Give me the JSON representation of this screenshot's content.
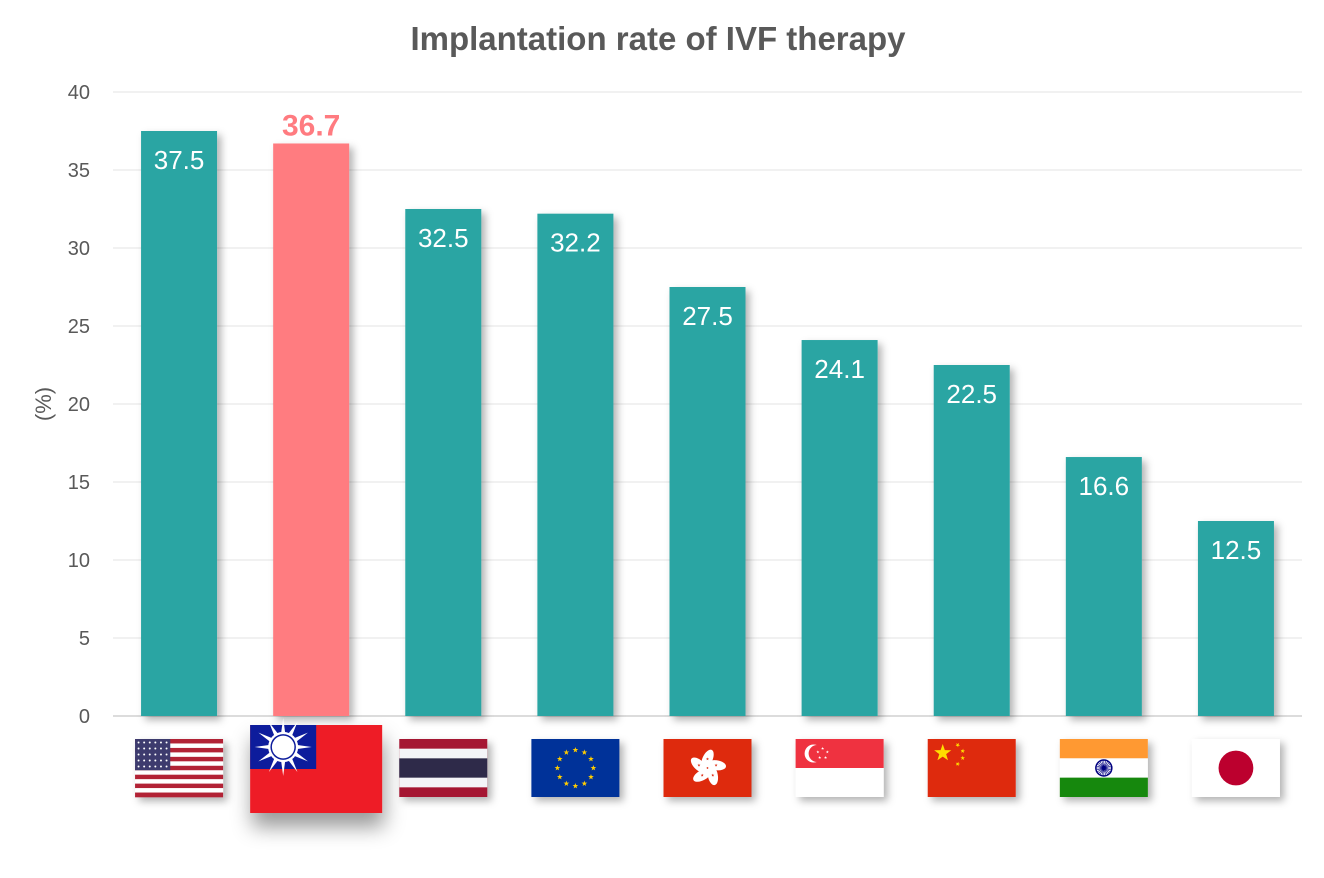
{
  "chart_data": {
    "type": "bar",
    "title": "Implantation rate of IVF therapy",
    "xlabel": "",
    "ylabel": "(%)",
    "ylim": [
      0,
      40
    ],
    "yticks": [
      0,
      5,
      10,
      15,
      20,
      25,
      30,
      35,
      40
    ],
    "grid": true,
    "categories": [
      "United States",
      "Taiwan",
      "Thailand",
      "European Union",
      "Hong Kong",
      "Singapore",
      "China",
      "India",
      "Japan"
    ],
    "values": [
      37.5,
      36.7,
      32.5,
      32.2,
      27.5,
      24.1,
      22.5,
      16.6,
      12.5
    ],
    "value_labels": [
      "37.5",
      "36.7",
      "32.5",
      "32.2",
      "27.5",
      "24.1",
      "22.5",
      "16.6",
      "12.5"
    ],
    "highlight_index": 1,
    "colors": {
      "bar": "#2aa5a3",
      "highlight": "#ff7b80",
      "grid": "#e3e3e3",
      "text": "#595959"
    },
    "flag_icons": [
      "usa-flag-icon",
      "taiwan-flag-icon",
      "thailand-flag-icon",
      "eu-flag-icon",
      "hong-kong-flag-icon",
      "singapore-flag-icon",
      "china-flag-icon",
      "india-flag-icon",
      "japan-flag-icon"
    ]
  }
}
